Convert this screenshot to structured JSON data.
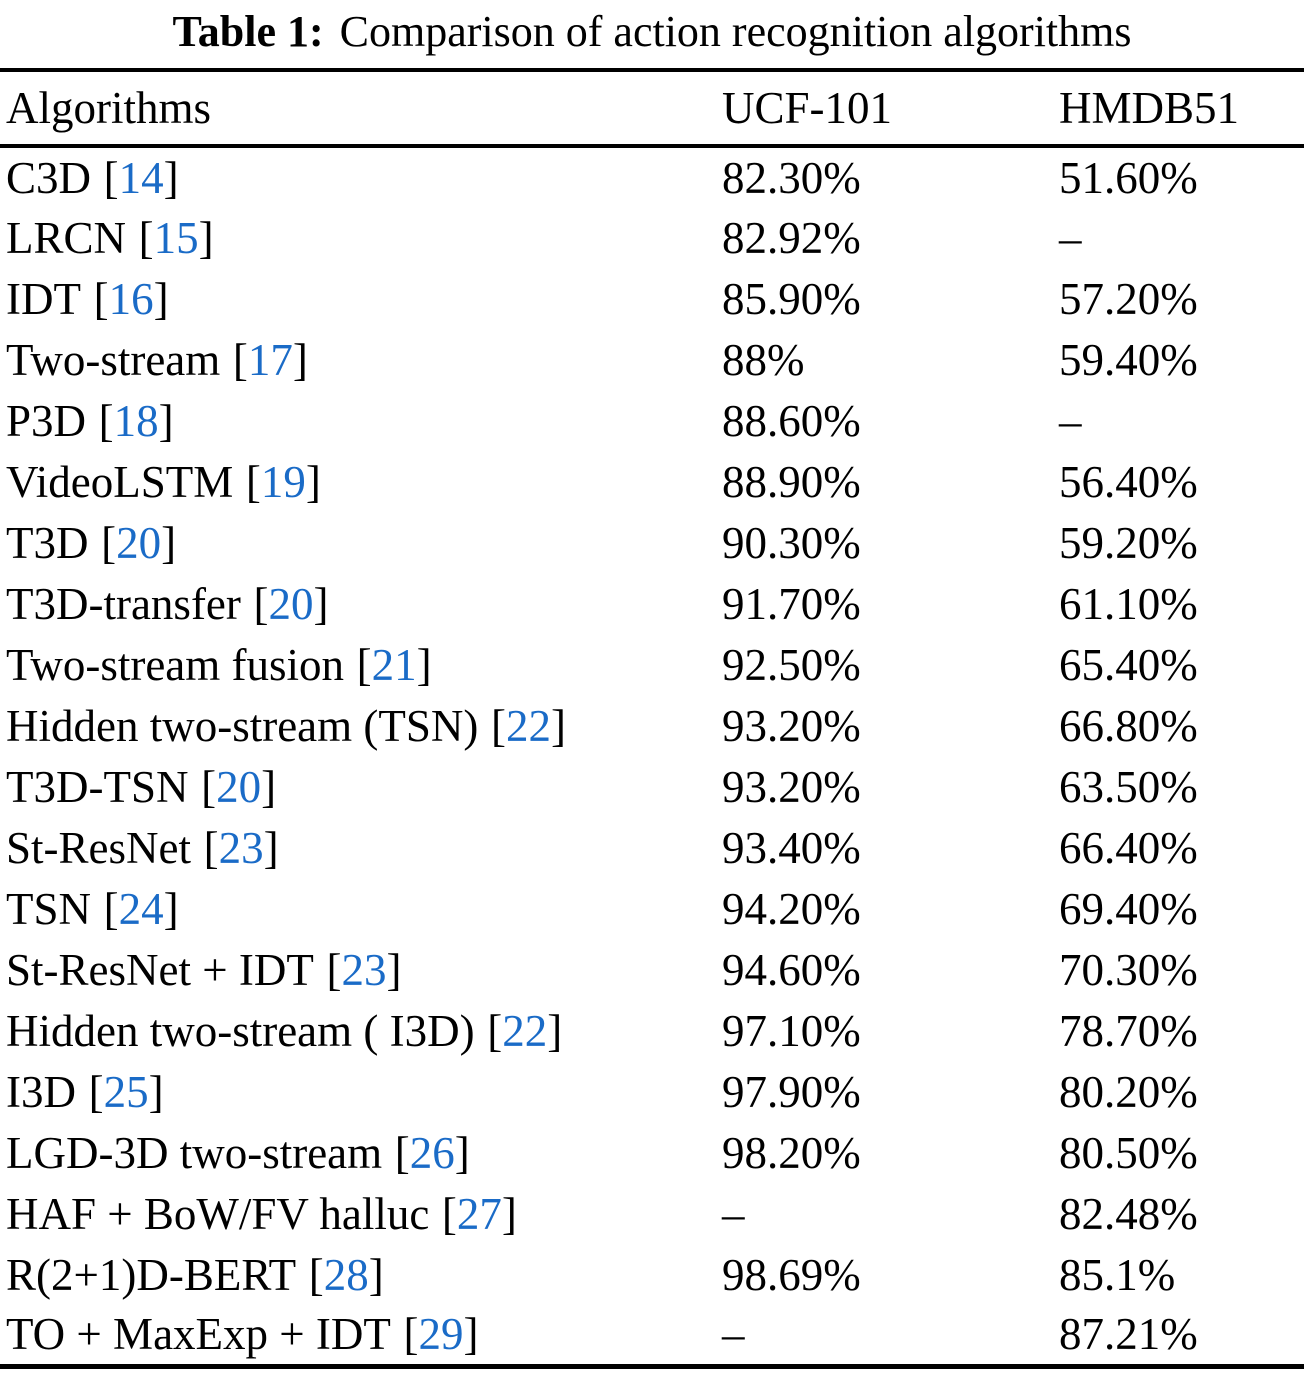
{
  "caption": {
    "label": "Table 1:",
    "text": "Comparison of action recognition algorithms"
  },
  "table": {
    "columns": [
      "Algorithms",
      "UCF-101",
      "HMDB51"
    ],
    "rows": [
      {
        "name": "C3D",
        "ref": "14",
        "ucf101": "82.30%",
        "hmdb51": "51.60%"
      },
      {
        "name": "LRCN",
        "ref": "15",
        "ucf101": "82.92%",
        "hmdb51": "–"
      },
      {
        "name": "IDT",
        "ref": "16",
        "ucf101": "85.90%",
        "hmdb51": "57.20%"
      },
      {
        "name": "Two-stream",
        "ref": "17",
        "ucf101": "88%",
        "hmdb51": "59.40%"
      },
      {
        "name": "P3D",
        "ref": "18",
        "ucf101": "88.60%",
        "hmdb51": "–"
      },
      {
        "name": "VideoLSTM",
        "ref": "19",
        "ucf101": "88.90%",
        "hmdb51": "56.40%"
      },
      {
        "name": "T3D",
        "ref": "20",
        "ucf101": "90.30%",
        "hmdb51": "59.20%"
      },
      {
        "name": "T3D-transfer",
        "ref": "20",
        "ucf101": "91.70%",
        "hmdb51": "61.10%"
      },
      {
        "name": "Two-stream fusion",
        "ref": "21",
        "ucf101": "92.50%",
        "hmdb51": "65.40%"
      },
      {
        "name": "Hidden two-stream (TSN)",
        "ref": "22",
        "ucf101": "93.20%",
        "hmdb51": "66.80%"
      },
      {
        "name": "T3D-TSN",
        "ref": "20",
        "ucf101": "93.20%",
        "hmdb51": "63.50%"
      },
      {
        "name": "St-ResNet",
        "ref": "23",
        "ucf101": "93.40%",
        "hmdb51": "66.40%"
      },
      {
        "name": "TSN",
        "ref": "24",
        "ucf101": "94.20%",
        "hmdb51": "69.40%"
      },
      {
        "name": "St-ResNet + IDT",
        "ref": "23",
        "ucf101": "94.60%",
        "hmdb51": "70.30%"
      },
      {
        "name": "Hidden two-stream ( I3D)",
        "ref": "22",
        "ucf101": "97.10%",
        "hmdb51": "78.70%"
      },
      {
        "name": "I3D",
        "ref": "25",
        "ucf101": "97.90%",
        "hmdb51": "80.20%"
      },
      {
        "name": "LGD-3D two-stream",
        "ref": "26",
        "ucf101": "98.20%",
        "hmdb51": "80.50%"
      },
      {
        "name": "HAF + BoW/FV halluc",
        "ref": "27",
        "ucf101": "–",
        "hmdb51": "82.48%"
      },
      {
        "name": "R(2+1)D-BERT",
        "ref": "28",
        "ucf101": "98.69%",
        "hmdb51": "85.1%"
      },
      {
        "name": "TO + MaxExp + IDT",
        "ref": "29",
        "ucf101": "–",
        "hmdb51": "87.21%"
      }
    ]
  },
  "colors": {
    "citation_blue": "#1a6bc7",
    "text": "#000000",
    "background": "#ffffff"
  }
}
